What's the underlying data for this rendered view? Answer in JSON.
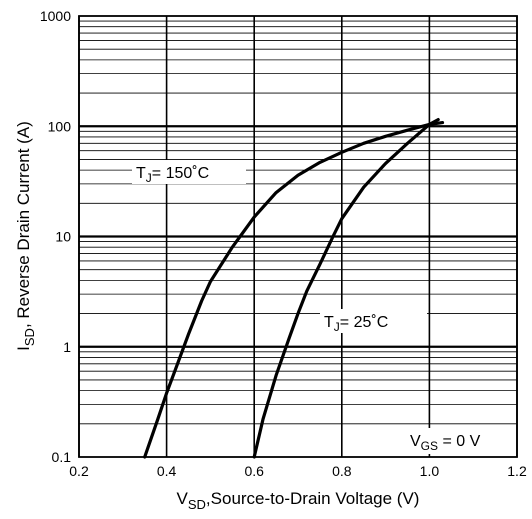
{
  "chart_data": {
    "type": "line",
    "title": "",
    "xlabel": {
      "main": "V",
      "sub": "SD",
      "rest": ",Source-to-Drain Voltage (V)"
    },
    "ylabel": {
      "main": "I",
      "sub": "SD",
      "rest": ", Reverse Drain Current (A)"
    },
    "xlim": [
      0.2,
      1.2
    ],
    "ylim": [
      0.1,
      1000
    ],
    "y_scale": "log",
    "x_ticks": [
      0.2,
      0.4,
      0.6,
      0.8,
      1.0,
      1.2
    ],
    "x_tick_labels": [
      "0.2",
      "0.4",
      "0.6",
      "0.8",
      "1.0",
      "1.2"
    ],
    "y_ticks": [
      0.1,
      1,
      10,
      100,
      1000
    ],
    "y_tick_labels": [
      "0.1",
      "1",
      "10",
      "100",
      "1000"
    ],
    "grid": true,
    "series": [
      {
        "label": {
          "main": "T",
          "sub": "J",
          "rest": "= 150˚C"
        },
        "color": "#000000",
        "x": [
          0.35,
          0.38,
          0.4,
          0.42,
          0.45,
          0.48,
          0.5,
          0.55,
          0.6,
          0.65,
          0.7,
          0.75,
          0.8,
          0.85,
          0.9,
          0.95,
          1.0,
          1.03
        ],
        "y": [
          0.1,
          0.22,
          0.38,
          0.62,
          1.3,
          2.6,
          3.9,
          8.0,
          15,
          25,
          36,
          47,
          58,
          70,
          81,
          92,
          104,
          108
        ]
      },
      {
        "label": {
          "main": "T",
          "sub": "J",
          "rest": "= 25˚C"
        },
        "color": "#000000",
        "x": [
          0.6,
          0.62,
          0.65,
          0.68,
          0.7,
          0.72,
          0.75,
          0.78,
          0.8,
          0.85,
          0.9,
          0.95,
          1.0,
          1.02
        ],
        "y": [
          0.1,
          0.22,
          0.55,
          1.2,
          2.0,
          3.2,
          5.6,
          10,
          14.5,
          28,
          46,
          70,
          104,
          115
        ]
      }
    ],
    "annotations": [
      {
        "main": "V",
        "sub": "GS",
        "rest": " = 0 V"
      }
    ]
  }
}
